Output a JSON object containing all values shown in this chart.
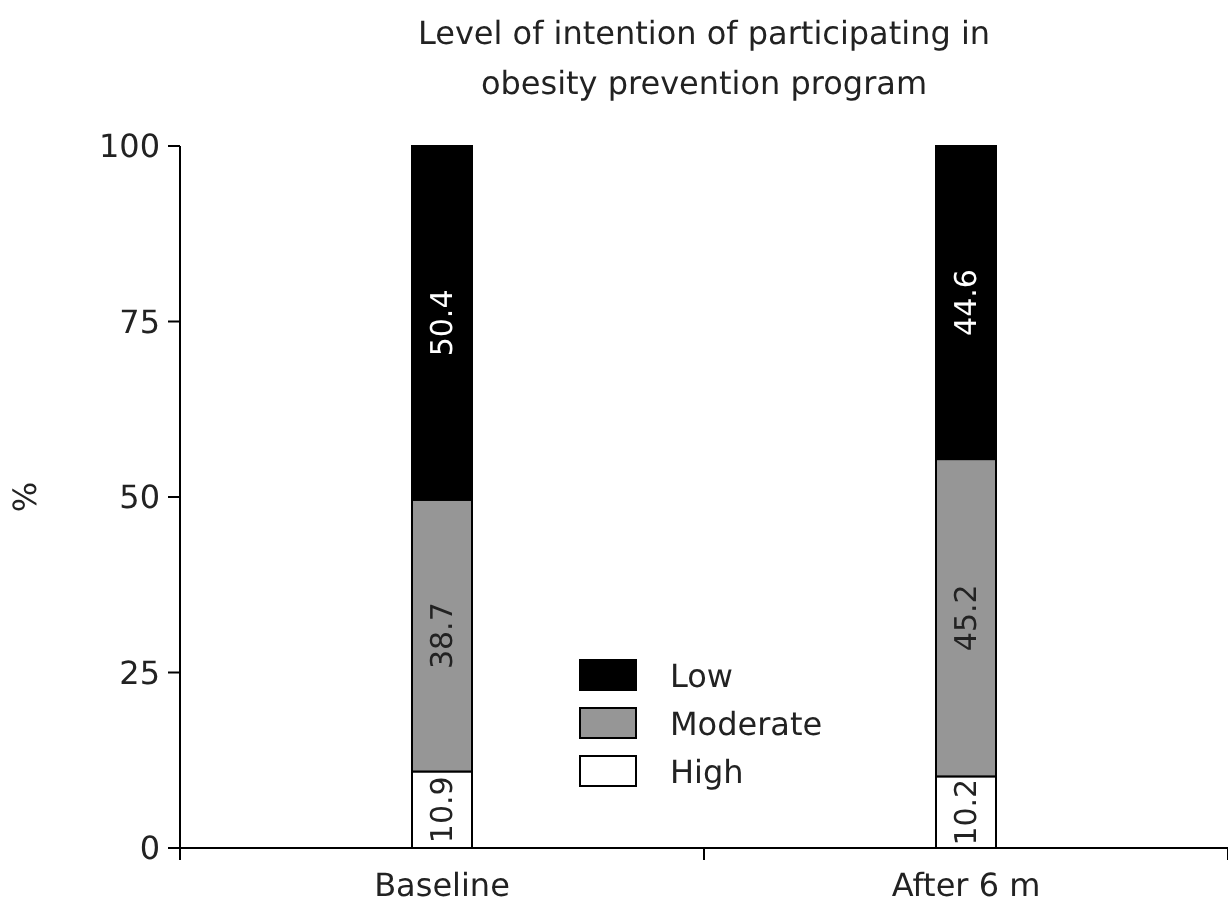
{
  "chart_data": {
    "type": "bar",
    "title": "Level of intention of participating in\nobesity prevention program",
    "ylabel": "%",
    "categories": [
      "Baseline",
      "After 6 m"
    ],
    "stacked": true,
    "data_labels": true,
    "legend": "bottom",
    "ylim": [
      0,
      100
    ],
    "yticks": [
      0,
      25,
      50,
      75,
      100
    ],
    "series": [
      {
        "name": "High",
        "color": "#ffffff",
        "values": [
          10.9,
          10.2
        ]
      },
      {
        "name": "Moderate",
        "color": "#969696",
        "values": [
          38.7,
          45.2
        ]
      },
      {
        "name": "Low",
        "color": "#000000",
        "values": [
          50.4,
          44.6
        ]
      }
    ]
  }
}
